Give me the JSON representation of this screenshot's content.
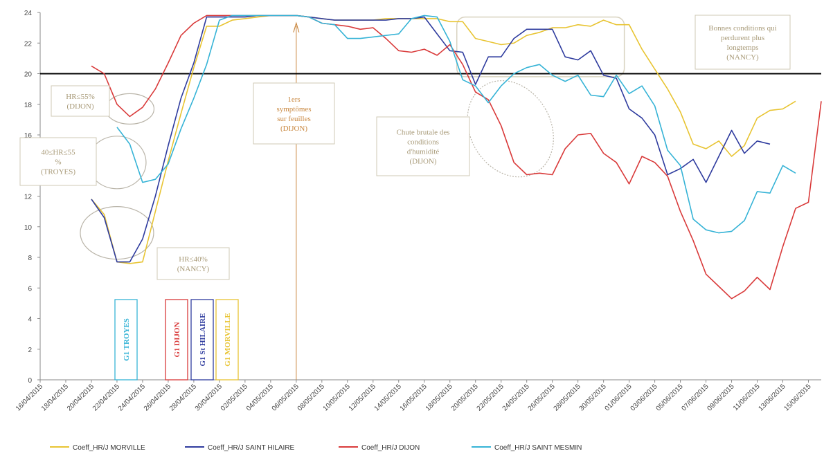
{
  "chart_data": {
    "type": "line",
    "ylim": [
      0,
      24
    ],
    "yticks": [
      "0",
      "2",
      "4",
      "6",
      "8",
      "10",
      "12",
      "14",
      "16",
      "18",
      "20",
      "22",
      "24"
    ],
    "x_dates": [
      "16/04/2015",
      "17/04/2015",
      "18/04/2015",
      "19/04/2015",
      "20/04/2015",
      "21/04/2015",
      "22/04/2015",
      "23/04/2015",
      "24/04/2015",
      "25/04/2015",
      "26/04/2015",
      "27/04/2015",
      "28/04/2015",
      "29/04/2015",
      "30/04/2015",
      "01/05/2015",
      "02/05/2015",
      "03/05/2015",
      "04/05/2015",
      "05/05/2015",
      "06/05/2015",
      "07/05/2015",
      "08/05/2015",
      "09/05/2015",
      "10/05/2015",
      "11/05/2015",
      "12/05/2015",
      "13/05/2015",
      "14/05/2015",
      "15/05/2015",
      "16/05/2015",
      "17/05/2015",
      "18/05/2015",
      "19/05/2015",
      "20/05/2015",
      "21/05/2015",
      "22/05/2015",
      "23/05/2015",
      "24/05/2015",
      "25/05/2015",
      "26/05/2015",
      "27/05/2015",
      "28/05/2015",
      "29/05/2015",
      "30/05/2015",
      "31/05/2015",
      "01/06/2015",
      "02/06/2015",
      "03/06/2015",
      "04/06/2015",
      "05/06/2015",
      "06/06/2015",
      "07/06/2015",
      "08/06/2015",
      "09/06/2015",
      "10/06/2015",
      "11/06/2015",
      "12/06/2015",
      "13/06/2015",
      "14/06/2015",
      "15/06/2015",
      "16/06/2015"
    ],
    "x_tick_labels": [
      "16/04/2015",
      "18/04/2015",
      "20/04/2015",
      "22/04/2015",
      "24/04/2015",
      "26/04/2015",
      "28/04/2015",
      "30/04/2015",
      "02/05/2015",
      "04/05/2015",
      "06/05/2015",
      "08/05/2015",
      "10/05/2015",
      "12/05/2015",
      "14/05/2015",
      "16/05/2015",
      "18/05/2015",
      "20/05/2015",
      "22/05/2015",
      "24/05/2015",
      "26/05/2015",
      "28/05/2015",
      "30/05/2015",
      "01/06/2015",
      "03/06/2015",
      "05/06/2015",
      "07/06/2015",
      "09/06/2015",
      "11/06/2015",
      "13/06/2015",
      "15/06/2015"
    ],
    "series": [
      {
        "name": "Coeff_HR/J MORVILLE",
        "color": "#e8c432",
        "start_index": 4,
        "values": [
          11.8,
          10.8,
          7.7,
          7.6,
          7.7,
          11.0,
          14.3,
          17.4,
          20.4,
          23.1,
          23.1,
          23.5,
          23.6,
          23.7,
          23.8,
          23.8,
          23.8,
          23.7,
          23.6,
          23.5,
          23.5,
          23.5,
          23.5,
          23.6,
          23.6,
          23.6,
          23.6,
          23.6,
          23.4,
          23.4,
          22.3,
          22.1,
          21.9,
          22.0,
          22.5,
          22.7,
          23.0,
          23.0,
          23.2,
          23.1,
          23.5,
          23.2,
          23.2,
          21.6,
          20.3,
          19.0,
          17.5,
          15.4,
          15.1,
          15.6,
          14.6,
          15.3,
          17.1,
          17.6,
          17.7,
          18.2
        ]
      },
      {
        "name": "Coeff_HR/J SAINT HILAIRE",
        "color": "#2e3b9e",
        "start_index": 4,
        "values": [
          11.8,
          10.6,
          7.7,
          7.7,
          9.2,
          12.0,
          15.3,
          18.4,
          20.7,
          23.7,
          23.7,
          23.7,
          23.7,
          23.8,
          23.8,
          23.8,
          23.8,
          23.7,
          23.6,
          23.5,
          23.5,
          23.5,
          23.5,
          23.5,
          23.6,
          23.6,
          23.7,
          22.6,
          21.5,
          21.4,
          19.3,
          21.1,
          21.1,
          22.3,
          22.9,
          22.9,
          22.9,
          21.1,
          20.9,
          21.5,
          19.9,
          19.7,
          17.7,
          17.1,
          16.0,
          13.4,
          13.8,
          14.4,
          12.9,
          14.6,
          16.3,
          14.8,
          15.6,
          15.4
        ]
      },
      {
        "name": "Coeff_HR/J DIJON",
        "color": "#d93a3a",
        "start_index": 4,
        "values": [
          20.5,
          20.0,
          18.0,
          17.2,
          17.8,
          19.0,
          20.7,
          22.5,
          23.3,
          23.8,
          23.8,
          23.8,
          23.8,
          23.8,
          23.8,
          23.8,
          23.8,
          23.7,
          23.3,
          23.2,
          23.1,
          22.9,
          23.0,
          22.3,
          21.5,
          21.4,
          21.6,
          21.2,
          21.9,
          20.6,
          18.8,
          18.3,
          16.6,
          14.2,
          13.4,
          13.5,
          13.4,
          15.1,
          16.0,
          16.1,
          14.8,
          14.2,
          12.8,
          14.6,
          14.2,
          13.3,
          11.0,
          9.1,
          6.9,
          6.1,
          5.3,
          5.8,
          6.7,
          5.9,
          8.7,
          11.2,
          11.6,
          18.2
        ]
      },
      {
        "name": "Coeff_HR/J SAINT MESMIN",
        "color": "#35b3d6",
        "start_index": 6,
        "values": [
          16.5,
          15.4,
          12.9,
          13.1,
          14.1,
          16.4,
          18.4,
          20.6,
          23.5,
          23.8,
          23.8,
          23.8,
          23.8,
          23.8,
          23.8,
          23.7,
          23.3,
          23.2,
          22.3,
          22.3,
          22.4,
          22.5,
          22.6,
          23.6,
          23.8,
          23.7,
          22.1,
          19.6,
          19.2,
          18.1,
          19.2,
          20.0,
          20.4,
          20.6,
          19.9,
          19.5,
          19.9,
          18.6,
          18.5,
          19.9,
          18.7,
          19.2,
          17.9,
          15.0,
          14.0,
          10.5,
          9.8,
          9.6,
          9.7,
          10.4,
          12.3,
          12.2,
          14.0,
          13.5
        ]
      }
    ],
    "reference_line": {
      "y": 20,
      "color": "#000000"
    },
    "legend_position": "bottom"
  },
  "annotations": [
    {
      "id": "hr-55-dijon",
      "lines": [
        "HR≤55%",
        "(DIJON)"
      ],
      "color": "#a89a78"
    },
    {
      "id": "hr-40-55-troyes",
      "lines": [
        "40≤HR≤55",
        "%",
        "(TROYES)"
      ],
      "color": "#a89a78"
    },
    {
      "id": "hr-40-nancy",
      "lines": [
        "HR≤40%",
        "(NANCY)"
      ],
      "color": "#a89a78"
    },
    {
      "id": "first-symptoms",
      "lines": [
        "1ers",
        "symptômes",
        "sur feuilles",
        "(DIJON)"
      ],
      "color": "#c9873f"
    },
    {
      "id": "chute-brutale",
      "lines": [
        "Chute brutale des",
        "conditions",
        "d'humidité",
        "(DIJON)"
      ],
      "color": "#a89a78"
    },
    {
      "id": "bonnes-conditions",
      "lines": [
        "Bonnes conditions qui",
        "perdurent plus",
        "longtemps",
        "(NANCY)"
      ],
      "color": "#a89a78"
    }
  ],
  "g1_labels": [
    {
      "text": "G1 TROYES",
      "color": "#35b3d6"
    },
    {
      "text": "G1 DIJON",
      "color": "#d93a3a"
    },
    {
      "text": "G1 St HILAIRE",
      "color": "#2e3b9e"
    },
    {
      "text": "G1 MORVILLE",
      "color": "#e8c432"
    }
  ]
}
